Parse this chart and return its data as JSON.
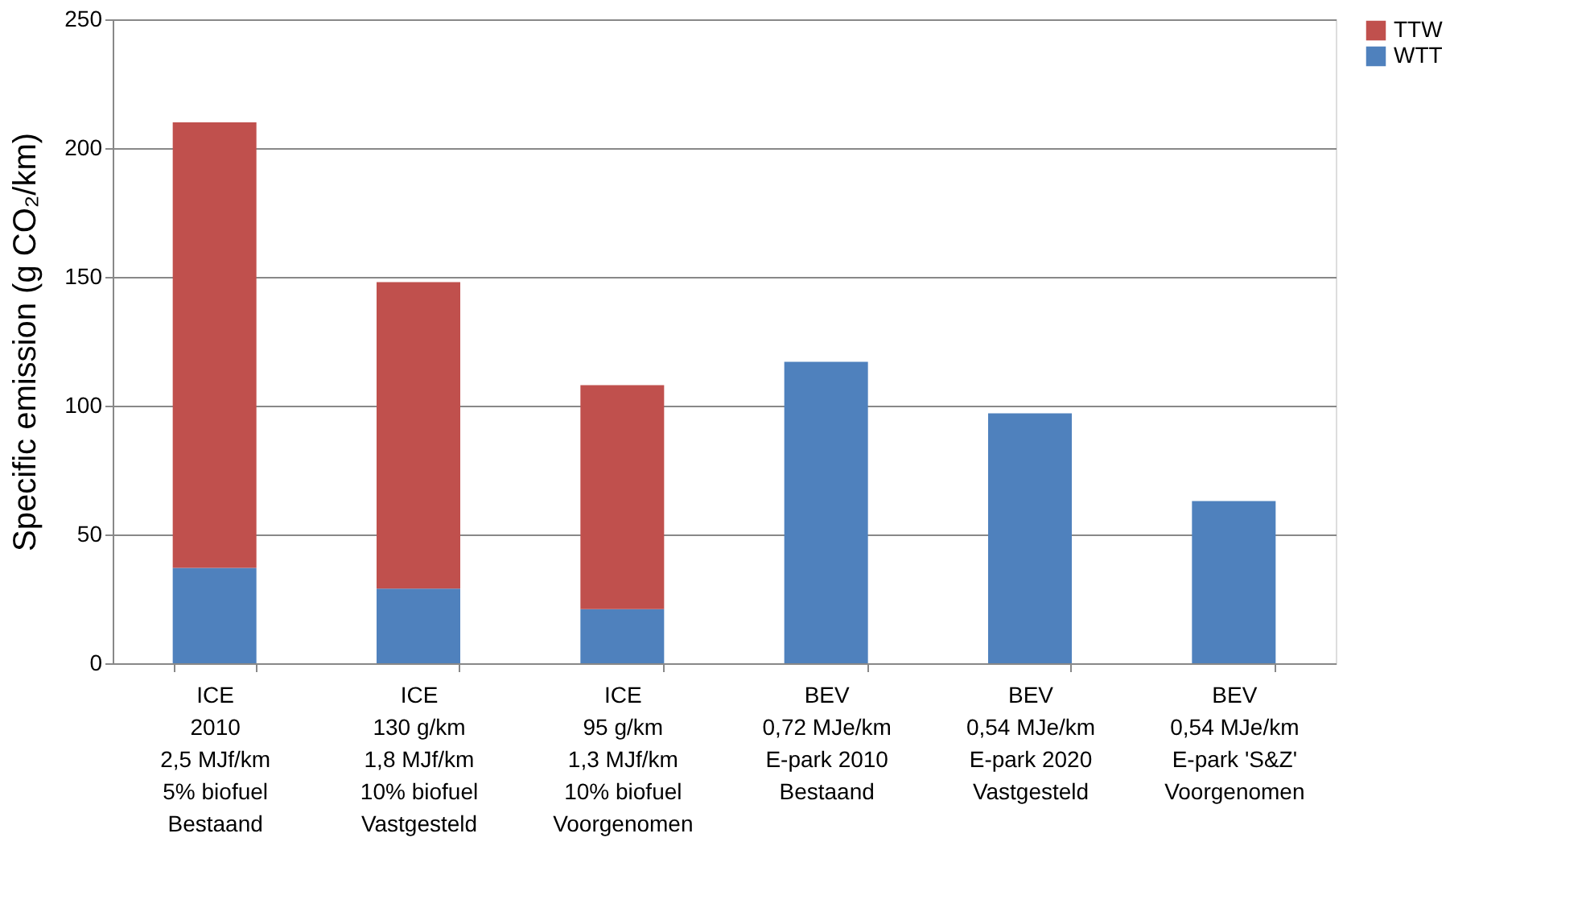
{
  "chart_data": {
    "type": "bar",
    "stacked": true,
    "ylabel": "Specific emission (g CO₂/km)",
    "categories": [
      "ICE\n2010\n2,5 MJf/km\n5% biofuel\nBestaand",
      "ICE\n130 g/km\n1,8 MJf/km\n10% biofuel\nVastgesteld",
      "ICE\n95 g/km\n1,3 MJf/km\n10% biofuel\nVoorgenomen",
      "BEV\n\n0,72 MJe/km\nE-park 2010\nBestaand",
      "BEV\n\n0,54 MJe/km\nE-park 2020\nVastgesteld",
      "BEV\n\n0,54 MJe/km\nE-park 'S&Z'\nVoorgenomen"
    ],
    "series": [
      {
        "name": "WTT",
        "color": "#4f81bd",
        "values": [
          37,
          29,
          21,
          117,
          97,
          63
        ]
      },
      {
        "name": "TTW",
        "color": "#c0504d",
        "values": [
          173,
          119,
          87,
          null,
          null,
          null
        ]
      }
    ],
    "ylim": [
      0,
      250
    ],
    "yticks": [
      0,
      50,
      100,
      150,
      200,
      250
    ],
    "grid": "y",
    "legend": "right"
  }
}
